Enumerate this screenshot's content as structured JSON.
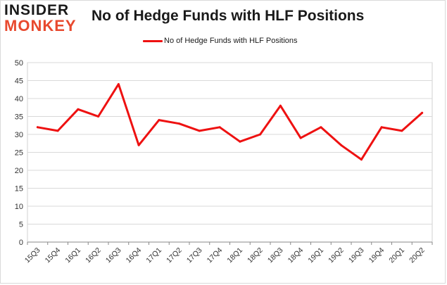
{
  "brand": {
    "line1": "INSIDER",
    "line2": "MONKEY"
  },
  "chart_data": {
    "type": "line",
    "title": "No of Hedge Funds with HLF Positions",
    "xlabel": "",
    "ylabel": "",
    "categories": [
      "15Q3",
      "15Q4",
      "16Q1",
      "16Q2",
      "16Q3",
      "16Q4",
      "17Q1",
      "17Q2",
      "17Q3",
      "17Q4",
      "18Q1",
      "18Q2",
      "18Q3",
      "18Q4",
      "19Q1",
      "19Q2",
      "19Q3",
      "19Q4",
      "20Q1",
      "20Q2"
    ],
    "series": [
      {
        "name": "No of Hedge Funds with HLF Positions",
        "values": [
          32,
          31,
          37,
          35,
          44,
          27,
          34,
          33,
          31,
          32,
          28,
          30,
          38,
          29,
          32,
          27,
          23,
          32,
          31,
          36
        ],
        "color": "#ee1111"
      }
    ],
    "ylim": [
      0,
      50
    ],
    "yticks": [
      0,
      5,
      10,
      15,
      20,
      25,
      30,
      35,
      40,
      45,
      50
    ],
    "grid": true,
    "legend": "top-center"
  }
}
